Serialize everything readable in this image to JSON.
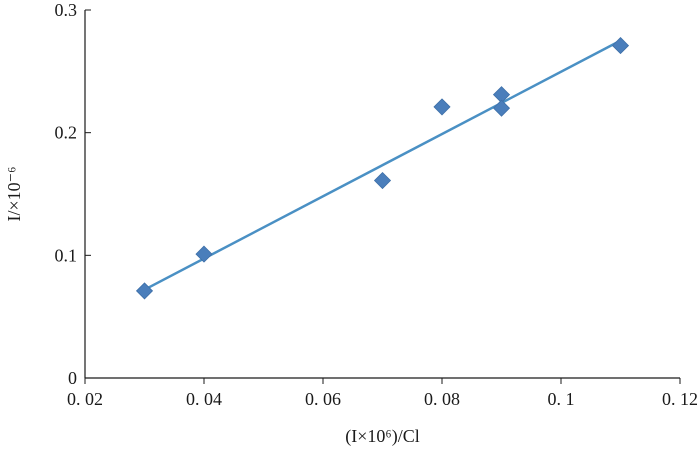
{
  "chart_data": {
    "type": "scatter",
    "title": "",
    "xlabel": "(I×10⁶)/Cl",
    "ylabel": "I/×10⁻⁶",
    "xlim": [
      0.02,
      0.12
    ],
    "ylim": [
      0,
      0.3
    ],
    "x_ticks": [
      0.02,
      0.04,
      0.06,
      0.08,
      0.1,
      0.12
    ],
    "x_tick_labels": [
      "0. 02",
      "0. 04",
      "0. 06",
      "0. 08",
      "0. 1",
      "0. 12"
    ],
    "y_ticks": [
      0,
      0.1,
      0.2,
      0.3
    ],
    "y_tick_labels": [
      "0",
      "0.1",
      "0.2",
      "0.3"
    ],
    "grid": false,
    "legend": "none",
    "series": [
      {
        "marker": "diamond",
        "color": "#4a7ebb",
        "points": [
          {
            "x": 0.03,
            "y": 0.071
          },
          {
            "x": 0.04,
            "y": 0.101
          },
          {
            "x": 0.07,
            "y": 0.161
          },
          {
            "x": 0.08,
            "y": 0.221
          },
          {
            "x": 0.09,
            "y": 0.231
          },
          {
            "x": 0.09,
            "y": 0.22
          },
          {
            "x": 0.11,
            "y": 0.271
          }
        ]
      }
    ],
    "trendline": {
      "color": "#4a90c4",
      "x": [
        0.03,
        0.11
      ],
      "y": [
        0.072,
        0.275
      ]
    }
  }
}
